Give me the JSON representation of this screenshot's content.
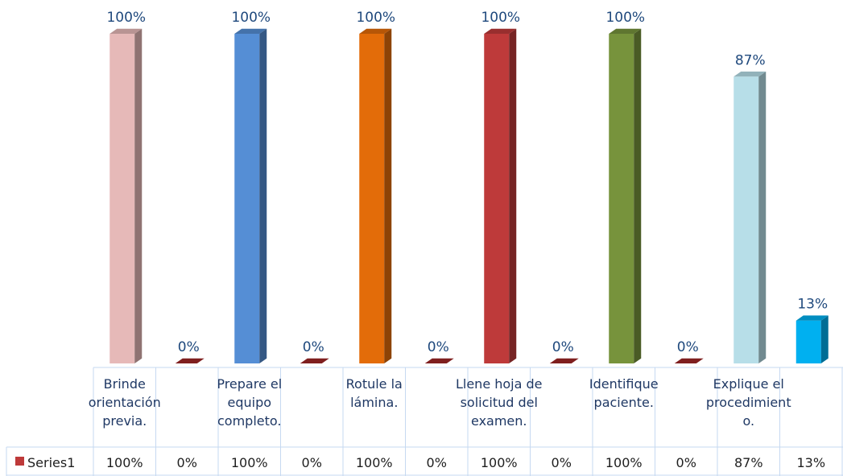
{
  "chart_data": {
    "type": "bar",
    "three_d": true,
    "categories": [
      [
        "Brinde",
        "orientación",
        "previa."
      ],
      [
        ""
      ],
      [
        "Prepare el",
        "equipo",
        "completo."
      ],
      [
        ""
      ],
      [
        "Rotule la",
        "lámina."
      ],
      [
        ""
      ],
      [
        "Llene hoja de",
        "solicitud del",
        "examen."
      ],
      [
        ""
      ],
      [
        "Identifique",
        "paciente."
      ],
      [
        ""
      ],
      [
        "Explique el",
        "procedimient",
        "o."
      ],
      [
        ""
      ]
    ],
    "series": [
      {
        "name": "Series1",
        "values": [
          100,
          0,
          100,
          0,
          100,
          0,
          100,
          0,
          100,
          0,
          87,
          13
        ],
        "labels": [
          "100%",
          "0%",
          "100%",
          "0%",
          "100%",
          "0%",
          "100%",
          "0%",
          "100%",
          "0%",
          "87%",
          "13%"
        ]
      }
    ],
    "bar_colors": [
      "#e6b9b8",
      "#c0504d",
      "#558ed5",
      "#c0504d",
      "#e36c09",
      "#c0504d",
      "#be3a3a",
      "#c0504d",
      "#77933c",
      "#c0504d",
      "#b7dee8",
      "#00b0f0"
    ],
    "legend_color": "#be3a3a",
    "data_table": true,
    "ylim": [
      0,
      100
    ],
    "grid": false
  }
}
